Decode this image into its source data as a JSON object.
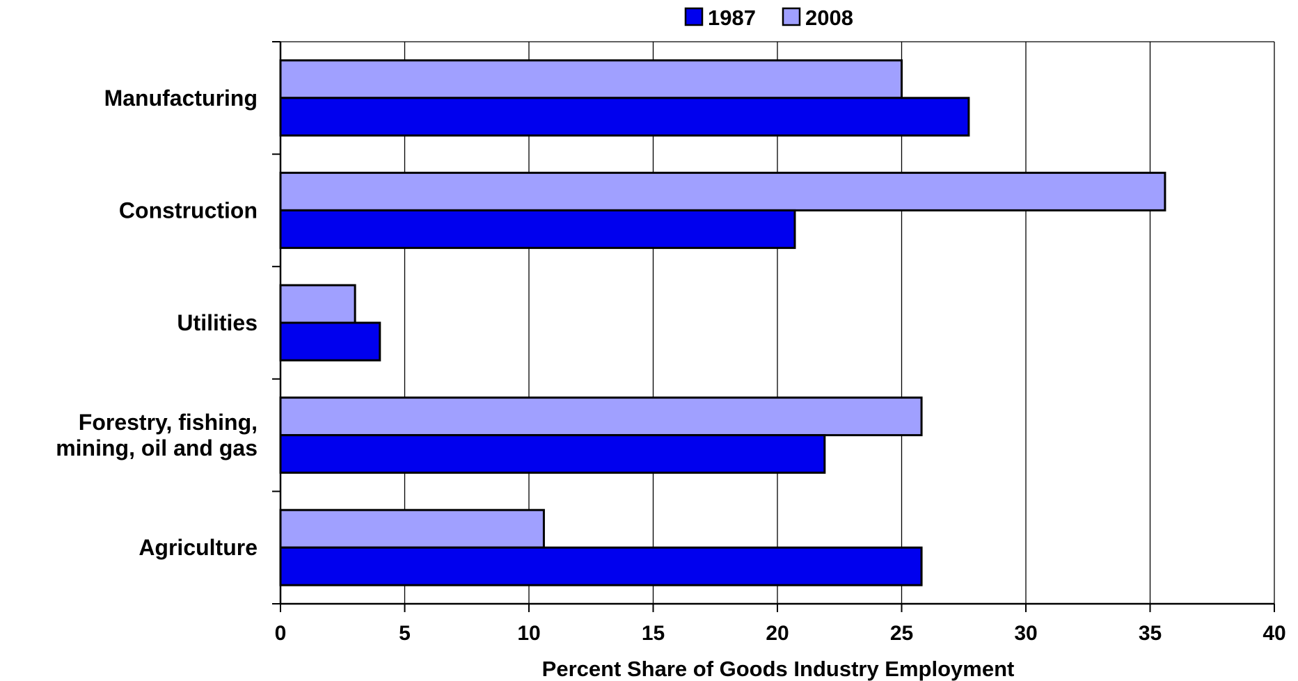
{
  "chart_data": {
    "type": "bar",
    "orientation": "horizontal",
    "categories": [
      "Manufacturing",
      "Construction",
      "Utilities",
      "Forestry, fishing,\nmining, oil and gas",
      "Agriculture"
    ],
    "series": [
      {
        "name": "1987",
        "color": "#0000ee",
        "values": [
          27.7,
          20.7,
          4.0,
          21.9,
          25.8
        ]
      },
      {
        "name": "2008",
        "color": "#a0a0ff",
        "values": [
          25.0,
          35.6,
          3.0,
          25.8,
          10.6
        ]
      }
    ],
    "xlabel": "Percent Share of Goods Industry Employment",
    "ylabel": "",
    "xlim": [
      0,
      40
    ],
    "xticks": [
      0,
      5,
      10,
      15,
      20,
      25,
      30,
      35,
      40
    ],
    "grid": "vertical",
    "legend_position": "top-center"
  }
}
